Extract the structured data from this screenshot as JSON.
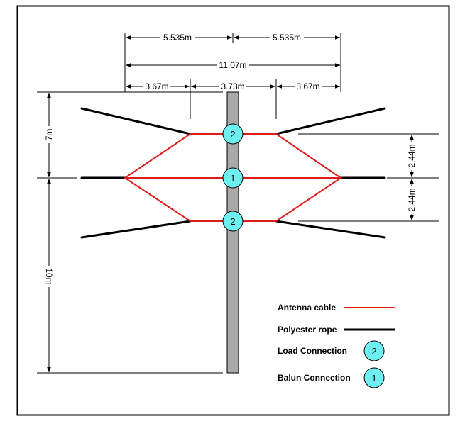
{
  "dimensions": {
    "top_half_left": "5.535m",
    "top_half_right": "5.535m",
    "total_width": "11.07m",
    "segment_left": "3.67m",
    "segment_center": "3.73m",
    "segment_right": "3.67m",
    "height_upper": "7m",
    "height_lower": "10m",
    "spacing_upper": "2.44m",
    "spacing_lower": "2.44m"
  },
  "connections": {
    "top": "2",
    "middle": "1",
    "bottom": "2"
  },
  "legend": {
    "antenna_cable": "Antenna cable",
    "polyester_rope": "Polyester rope",
    "load_connection": "Load Connection",
    "load_symbol": "2",
    "balun_connection": "Balun Connection",
    "balun_symbol": "1"
  },
  "colors": {
    "antenna_cable": "#e01b1b",
    "polyester_rope": "#000000",
    "connector_fill": "#6ff0f0",
    "mast": "#a9a9a9"
  }
}
